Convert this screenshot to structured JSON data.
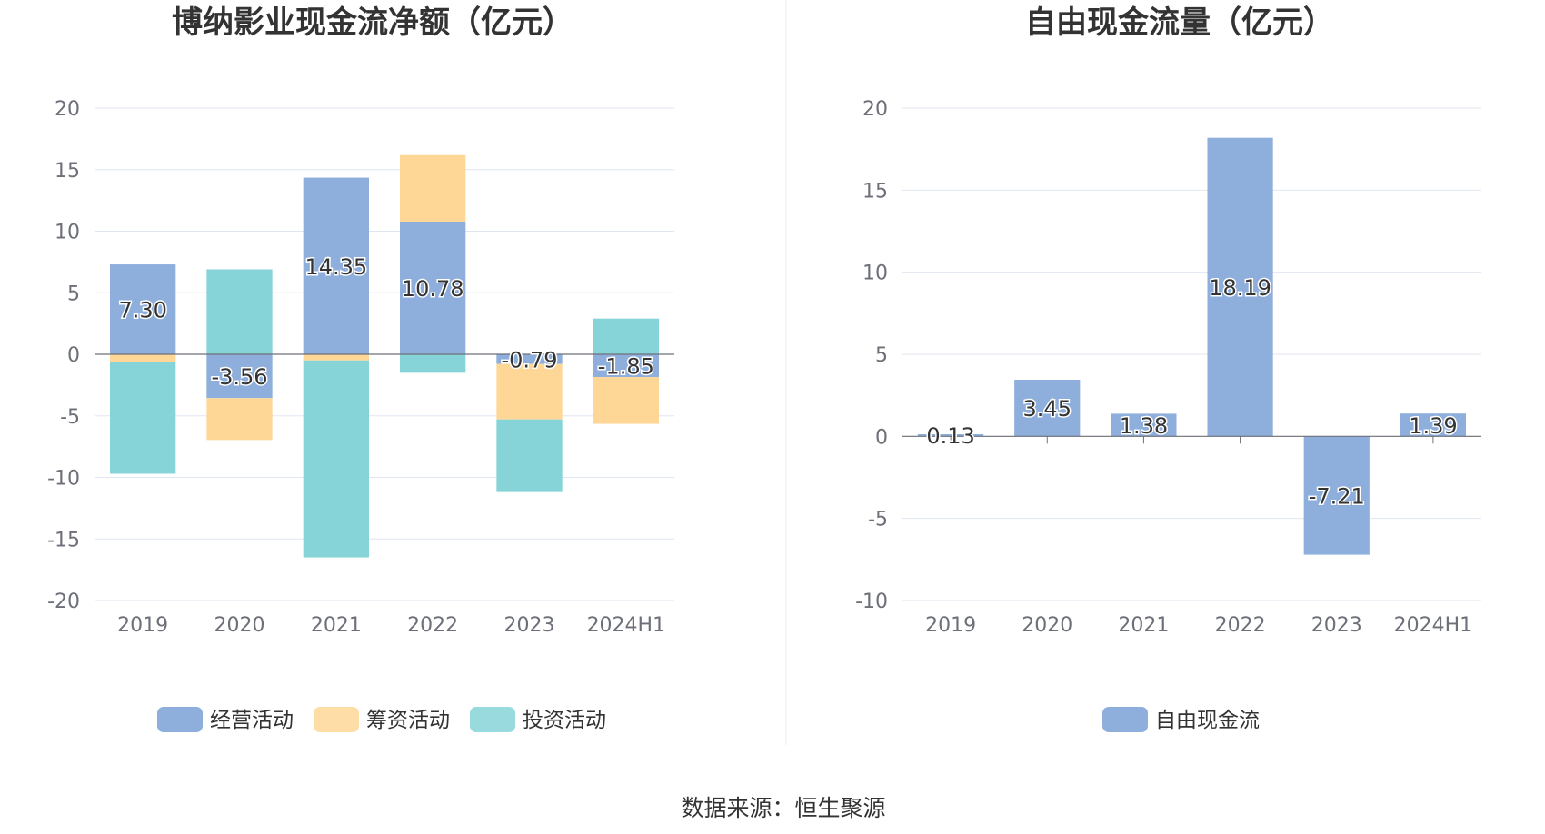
{
  "source_label": "数据来源：恒生聚源",
  "colors": {
    "operating": "#8eaedb",
    "financing": "#fed797",
    "investing": "#86d4d8",
    "fcf": "#8eaedb"
  },
  "chart_data": [
    {
      "type": "bar",
      "stacked": true,
      "title": "博纳影业现金流净额（亿元）",
      "categories": [
        "2019",
        "2020",
        "2021",
        "2022",
        "2023",
        "2024H1"
      ],
      "ylim": [
        -20,
        20
      ],
      "yticks": [
        20,
        15,
        10,
        5,
        0,
        -5,
        -10,
        -15,
        -20
      ],
      "grid": true,
      "legend_position": "bottom",
      "series": [
        {
          "name": "经营活动",
          "color": "#8eaedb",
          "values": [
            7.3,
            -3.56,
            14.35,
            10.78,
            -0.79,
            -1.85
          ],
          "labels": [
            "7.30",
            "-3.56",
            "14.35",
            "10.78",
            "-0.79",
            "-1.85"
          ]
        },
        {
          "name": "筹资活动",
          "color": "#fed797",
          "values": [
            -0.6,
            -3.4,
            -0.5,
            5.4,
            -4.5,
            -3.8
          ]
        },
        {
          "name": "投资活动",
          "color": "#86d4d8",
          "values": [
            -9.1,
            6.9,
            -16.0,
            -1.5,
            -5.9,
            2.9
          ]
        }
      ]
    },
    {
      "type": "bar",
      "title": "自由现金流量（亿元）",
      "categories": [
        "2019",
        "2020",
        "2021",
        "2022",
        "2023",
        "2024H1"
      ],
      "ylim": [
        -10,
        20
      ],
      "yticks": [
        20,
        15,
        10,
        5,
        0,
        -5,
        -10
      ],
      "grid": true,
      "legend_position": "bottom",
      "series": [
        {
          "name": "自由现金流",
          "color": "#8eaedb",
          "values": [
            0.13,
            3.45,
            1.38,
            18.19,
            -7.21,
            1.39
          ],
          "labels": [
            "0.13",
            "3.45",
            "1.38",
            "18.19",
            "-7.21",
            "1.39"
          ]
        }
      ]
    }
  ]
}
